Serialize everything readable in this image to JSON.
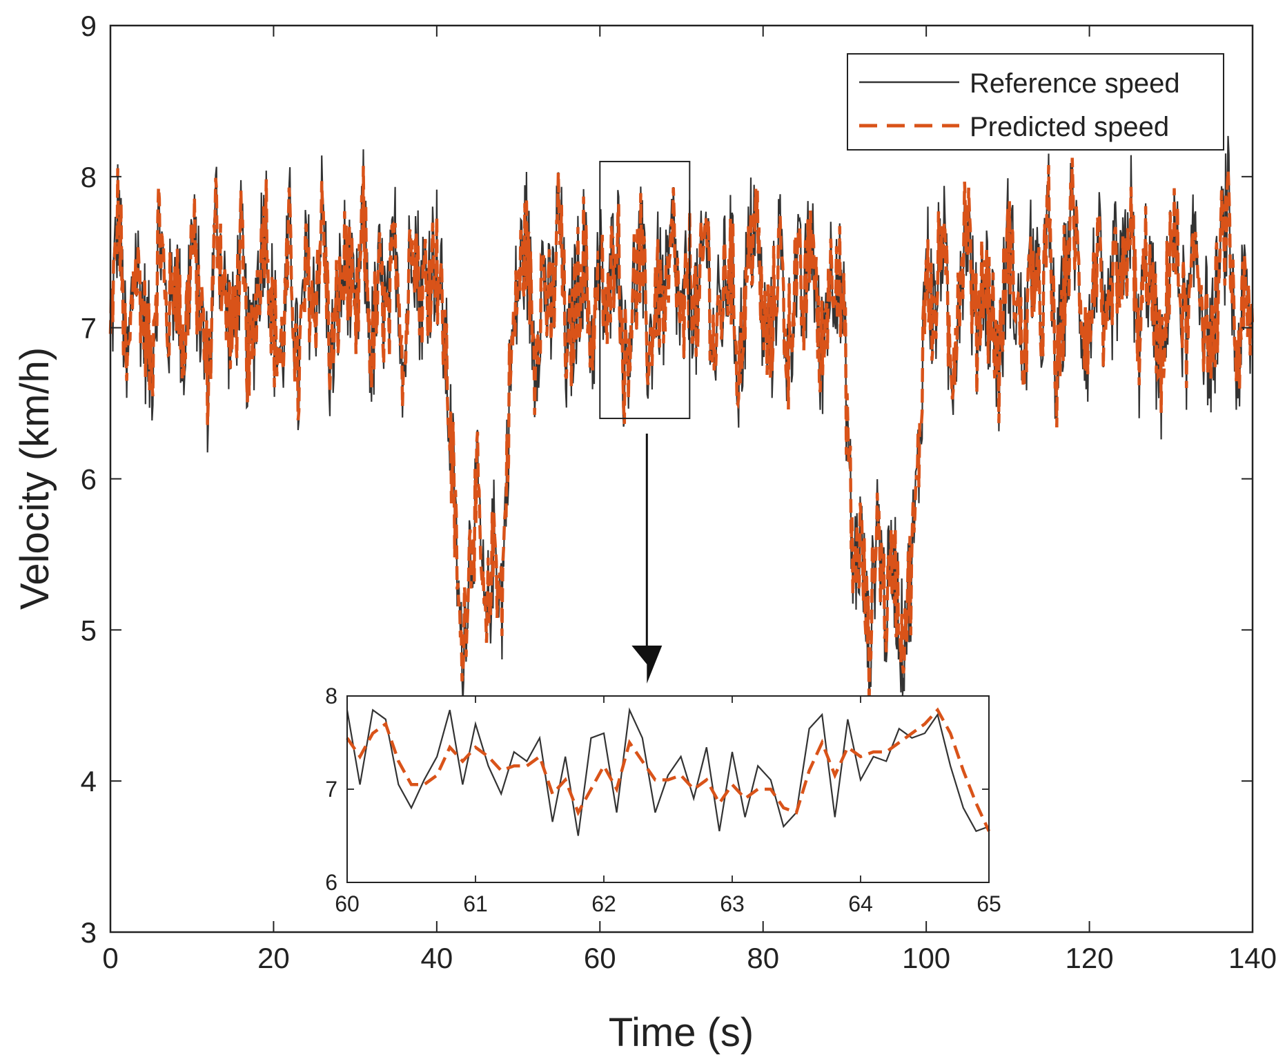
{
  "chart_data": {
    "type": "line",
    "xlabel": "Time (s)",
    "ylabel": "Velocity (km/h)",
    "xlim": [
      0,
      140
    ],
    "ylim": [
      3,
      9
    ],
    "xticks": [
      0,
      20,
      40,
      60,
      80,
      100,
      120,
      140
    ],
    "yticks": [
      3,
      4,
      5,
      6,
      7,
      8,
      9
    ],
    "grid": false,
    "legend": {
      "position": "top-right",
      "entries": [
        "Reference speed",
        "Predicted speed"
      ]
    },
    "colors": {
      "reference": "#333333",
      "predicted": "#d95319"
    },
    "series": [
      {
        "name": "Reference speed",
        "style": "solid",
        "x": [
          0,
          1,
          2,
          3,
          4,
          5,
          6,
          7,
          8,
          9,
          10,
          11,
          12,
          13,
          14,
          15,
          16,
          17,
          18,
          19,
          20,
          21,
          22,
          23,
          24,
          25,
          26,
          27,
          28,
          29,
          30,
          31,
          32,
          33,
          34,
          35,
          36,
          37,
          38,
          39,
          40,
          41,
          42,
          43,
          44,
          45,
          46,
          47,
          48,
          49,
          50,
          51,
          52,
          53,
          54,
          55,
          56,
          57,
          58,
          59,
          60,
          61,
          62,
          63,
          64,
          65,
          66,
          67,
          68,
          69,
          70,
          71,
          72,
          73,
          74,
          75,
          76,
          77,
          78,
          79,
          80,
          81,
          82,
          83,
          84,
          85,
          86,
          87,
          88,
          89,
          90,
          91,
          92,
          93,
          94,
          95,
          96,
          97,
          98,
          99,
          100,
          101,
          102,
          103,
          104,
          105,
          106,
          107,
          108,
          109,
          110,
          111,
          112,
          113,
          114,
          115,
          116,
          117,
          118,
          119,
          120,
          121,
          122,
          123,
          124,
          125,
          126,
          127,
          128,
          129,
          130,
          131,
          132,
          133,
          134,
          135,
          136,
          137,
          138,
          139,
          140
        ],
        "y": [
          6.9,
          7.8,
          6.6,
          7.5,
          7.1,
          6.7,
          7.7,
          7.0,
          7.4,
          6.8,
          7.6,
          7.1,
          6.6,
          7.8,
          7.2,
          6.9,
          7.5,
          6.7,
          7.3,
          7.8,
          7.0,
          6.8,
          7.6,
          6.6,
          7.4,
          7.1,
          7.8,
          6.7,
          7.2,
          7.5,
          6.9,
          7.7,
          6.8,
          7.3,
          7.0,
          7.6,
          6.7,
          7.8,
          7.2,
          7.4,
          7.5,
          6.9,
          6.0,
          4.8,
          5.5,
          5.9,
          4.9,
          5.6,
          5.2,
          6.7,
          7.3,
          7.6,
          6.8,
          7.4,
          7.0,
          7.8,
          6.7,
          7.2,
          7.5,
          6.9,
          7.4,
          7.0,
          7.8,
          6.7,
          7.2,
          7.5,
          6.8,
          7.3,
          7.1,
          7.6,
          6.9,
          7.4,
          7.0,
          7.7,
          6.8,
          7.2,
          7.5,
          6.7,
          7.3,
          7.8,
          7.0,
          6.9,
          7.6,
          6.8,
          7.4,
          7.1,
          7.7,
          6.7,
          7.3,
          7.5,
          6.9,
          5.4,
          5.6,
          4.8,
          5.8,
          5.1,
          5.5,
          4.9,
          5.3,
          6.0,
          7.5,
          7.0,
          7.7,
          6.6,
          7.3,
          7.8,
          6.9,
          7.4,
          7.1,
          6.7,
          7.6,
          7.2,
          6.8,
          7.5,
          7.0,
          7.7,
          6.6,
          7.3,
          7.8,
          7.1,
          6.9,
          7.6,
          6.7,
          7.4,
          7.2,
          7.8,
          6.8,
          7.5,
          7.0,
          6.6,
          7.7,
          7.3,
          6.9,
          7.6,
          7.1,
          6.8,
          7.4,
          7.8,
          6.7,
          7.2,
          6.9
        ],
        "mode": "high-frequency noisy signal"
      },
      {
        "name": "Predicted speed",
        "style": "dashed",
        "x": [
          0,
          1,
          2,
          3,
          4,
          5,
          6,
          7,
          8,
          9,
          10,
          11,
          12,
          13,
          14,
          15,
          16,
          17,
          18,
          19,
          20,
          21,
          22,
          23,
          24,
          25,
          26,
          27,
          28,
          29,
          30,
          31,
          32,
          33,
          34,
          35,
          36,
          37,
          38,
          39,
          40,
          41,
          42,
          43,
          44,
          45,
          46,
          47,
          48,
          49,
          50,
          51,
          52,
          53,
          54,
          55,
          56,
          57,
          58,
          59,
          60,
          61,
          62,
          63,
          64,
          65,
          66,
          67,
          68,
          69,
          70,
          71,
          72,
          73,
          74,
          75,
          76,
          77,
          78,
          79,
          80,
          81,
          82,
          83,
          84,
          85,
          86,
          87,
          88,
          89,
          90,
          91,
          92,
          93,
          94,
          95,
          96,
          97,
          98,
          99,
          100,
          101,
          102,
          103,
          104,
          105,
          106,
          107,
          108,
          109,
          110,
          111,
          112,
          113,
          114,
          115,
          116,
          117,
          118,
          119,
          120,
          121,
          122,
          123,
          124,
          125,
          126,
          127,
          128,
          129,
          130,
          131,
          132,
          133,
          134,
          135,
          136,
          137,
          138,
          139,
          140
        ],
        "y": [
          7.0,
          7.6,
          6.8,
          7.4,
          7.2,
          6.8,
          7.5,
          7.1,
          7.3,
          6.9,
          7.5,
          7.1,
          6.7,
          7.6,
          7.2,
          7.0,
          7.4,
          6.8,
          7.3,
          7.6,
          7.0,
          6.9,
          7.5,
          6.6,
          7.3,
          7.1,
          7.7,
          6.8,
          7.2,
          7.4,
          7.0,
          7.5,
          6.9,
          7.3,
          7.0,
          7.5,
          6.8,
          7.6,
          7.2,
          7.3,
          7.4,
          7.0,
          6.0,
          4.9,
          5.5,
          5.8,
          5.0,
          5.5,
          5.3,
          6.8,
          7.3,
          7.5,
          6.9,
          7.3,
          7.1,
          7.6,
          6.8,
          7.2,
          7.4,
          7.0,
          7.3,
          7.1,
          7.6,
          6.8,
          7.2,
          7.4,
          6.9,
          7.3,
          7.1,
          7.5,
          7.0,
          7.3,
          7.1,
          7.6,
          6.9,
          7.2,
          7.4,
          6.8,
          7.3,
          7.6,
          7.1,
          7.0,
          7.5,
          6.9,
          7.3,
          7.2,
          7.6,
          6.8,
          7.3,
          7.4,
          7.0,
          5.2,
          5.6,
          4.9,
          5.7,
          5.2,
          5.5,
          5.0,
          5.3,
          6.1,
          7.4,
          7.1,
          7.6,
          6.7,
          7.3,
          7.7,
          7.0,
          7.3,
          7.1,
          6.8,
          7.5,
          7.2,
          6.9,
          7.4,
          7.1,
          7.6,
          6.7,
          7.3,
          7.7,
          7.1,
          7.0,
          7.5,
          6.8,
          7.3,
          7.2,
          7.7,
          6.9,
          7.4,
          7.1,
          6.7,
          7.6,
          7.3,
          7.0,
          7.5,
          7.1,
          6.9,
          7.4,
          7.7,
          6.8,
          7.2,
          7.0
        ]
      }
    ],
    "zoom_box": {
      "x_range": [
        60,
        71
      ],
      "y_range": [
        6.4,
        8.1
      ]
    },
    "inset": {
      "xlim": [
        60,
        65
      ],
      "ylim": [
        6,
        8
      ],
      "xticks": [
        60,
        61,
        62,
        63,
        64,
        65
      ],
      "yticks": [
        6,
        7,
        8
      ],
      "series": [
        {
          "name": "Reference speed",
          "x": [
            60.0,
            60.1,
            60.2,
            60.3,
            60.4,
            60.5,
            60.6,
            60.7,
            60.8,
            60.9,
            61.0,
            61.1,
            61.2,
            61.3,
            61.4,
            61.5,
            61.6,
            61.7,
            61.8,
            61.9,
            62.0,
            62.1,
            62.2,
            62.3,
            62.4,
            62.5,
            62.6,
            62.7,
            62.8,
            62.9,
            63.0,
            63.1,
            63.2,
            63.3,
            63.4,
            63.5,
            63.6,
            63.7,
            63.8,
            63.9,
            64.0,
            64.1,
            64.2,
            64.3,
            64.4,
            64.5,
            64.6,
            64.7,
            64.8,
            64.9,
            65.0
          ],
          "y": [
            7.85,
            7.05,
            7.85,
            7.75,
            7.05,
            6.8,
            7.1,
            7.35,
            7.85,
            7.05,
            7.7,
            7.25,
            6.95,
            7.4,
            7.3,
            7.55,
            6.65,
            7.35,
            6.5,
            7.55,
            7.6,
            6.75,
            7.85,
            7.55,
            6.75,
            7.15,
            7.35,
            6.9,
            7.45,
            6.55,
            7.4,
            6.7,
            7.25,
            7.1,
            6.6,
            6.75,
            7.65,
            7.8,
            6.7,
            7.75,
            7.1,
            7.35,
            7.3,
            7.65,
            7.55,
            7.6,
            7.8,
            7.25,
            6.8,
            6.55,
            6.6
          ]
        },
        {
          "name": "Predicted speed",
          "x": [
            60.0,
            60.1,
            60.2,
            60.3,
            60.4,
            60.5,
            60.6,
            60.7,
            60.8,
            60.9,
            61.0,
            61.1,
            61.2,
            61.3,
            61.4,
            61.5,
            61.6,
            61.7,
            61.8,
            61.9,
            62.0,
            62.1,
            62.2,
            62.3,
            62.4,
            62.5,
            62.6,
            62.7,
            62.8,
            62.9,
            63.0,
            63.1,
            63.2,
            63.3,
            63.4,
            63.5,
            63.6,
            63.7,
            63.8,
            63.9,
            64.0,
            64.1,
            64.2,
            64.3,
            64.4,
            64.5,
            64.6,
            64.7,
            64.8,
            64.9,
            65.0
          ],
          "y": [
            7.55,
            7.35,
            7.6,
            7.7,
            7.3,
            7.05,
            7.05,
            7.15,
            7.45,
            7.3,
            7.45,
            7.35,
            7.2,
            7.25,
            7.25,
            7.35,
            6.95,
            7.1,
            6.75,
            7.0,
            7.25,
            7.0,
            7.5,
            7.3,
            7.1,
            7.1,
            7.15,
            7.0,
            7.1,
            6.85,
            7.05,
            6.9,
            7.0,
            7.0,
            6.8,
            6.75,
            7.2,
            7.5,
            7.15,
            7.45,
            7.35,
            7.4,
            7.4,
            7.5,
            7.6,
            7.7,
            7.85,
            7.6,
            7.2,
            6.85,
            6.55
          ]
        }
      ]
    }
  }
}
